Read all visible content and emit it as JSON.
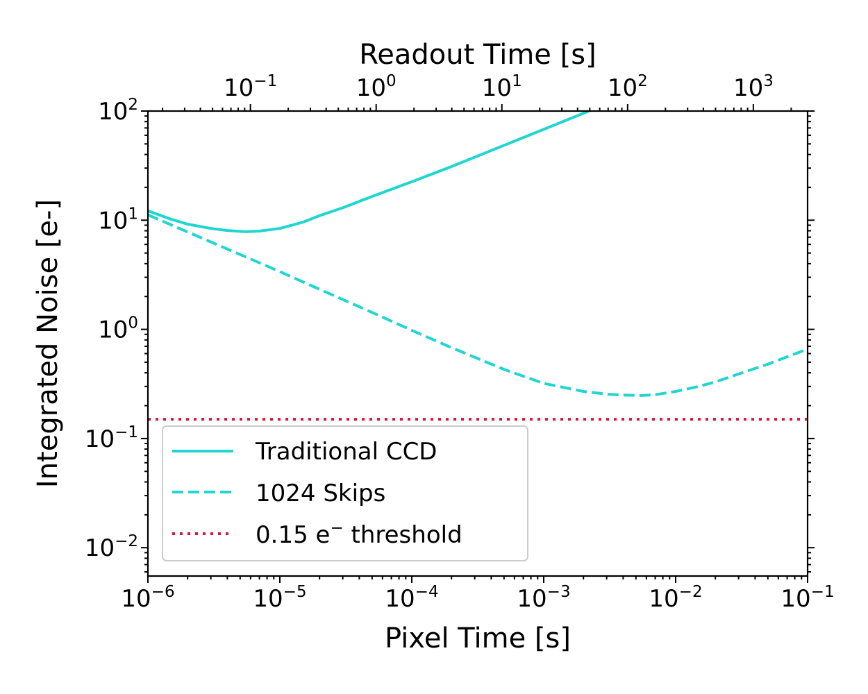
{
  "chart_data": {
    "type": "line",
    "title": "",
    "xlabel": "Pixel Time [s]",
    "ylabel": "Integrated Noise [e-]",
    "top_xlabel": "Readout Time [s]",
    "x_scale": "log",
    "y_scale": "log",
    "xlim": [
      1e-06,
      0.1
    ],
    "ylim": [
      0.0055,
      100
    ],
    "top_xlim": [
      0.0153,
      2700
    ],
    "x_ticks": [
      {
        "value": 1e-06,
        "base": "10",
        "exp": "−6"
      },
      {
        "value": 1e-05,
        "base": "10",
        "exp": "−5"
      },
      {
        "value": 0.0001,
        "base": "10",
        "exp": "−4"
      },
      {
        "value": 0.001,
        "base": "10",
        "exp": "−3"
      },
      {
        "value": 0.01,
        "base": "10",
        "exp": "−2"
      },
      {
        "value": 0.1,
        "base": "10",
        "exp": "−1"
      }
    ],
    "y_ticks": [
      {
        "value": 0.01,
        "base": "10",
        "exp": "−2"
      },
      {
        "value": 0.1,
        "base": "10",
        "exp": "−1"
      },
      {
        "value": 1,
        "base": "10",
        "exp": "0"
      },
      {
        "value": 10,
        "base": "10",
        "exp": "1"
      },
      {
        "value": 100,
        "base": "10",
        "exp": "2"
      }
    ],
    "top_x_ticks": [
      {
        "value": 0.1,
        "base": "10",
        "exp": "−1"
      },
      {
        "value": 1,
        "base": "10",
        "exp": "0"
      },
      {
        "value": 10,
        "base": "10",
        "exp": "1"
      },
      {
        "value": 100,
        "base": "10",
        "exp": "2"
      },
      {
        "value": 1000,
        "base": "10",
        "exp": "3"
      }
    ],
    "series": [
      {
        "name": "Traditional CCD",
        "style": "solid",
        "color": "#1fd6d0",
        "x": [
          1e-06,
          1.5e-06,
          2e-06,
          3e-06,
          4e-06,
          5e-06,
          5.5e-06,
          7e-06,
          1e-05,
          1.5e-05,
          2e-05,
          3e-05,
          5e-05,
          0.0001,
          0.0002,
          0.0005,
          0.001,
          0.0022
        ],
        "y": [
          12.2,
          10.2,
          9.2,
          8.4,
          8.05,
          7.9,
          7.85,
          7.95,
          8.4,
          9.6,
          11.0,
          13.0,
          16.5,
          22.5,
          31.0,
          48.5,
          68.0,
          100
        ]
      },
      {
        "name": "1024 Skips",
        "style": "dashed",
        "color": "#1fd6d0",
        "x": [
          1e-06,
          2e-06,
          5e-06,
          1e-05,
          2e-05,
          5e-05,
          0.0001,
          0.0002,
          0.0005,
          0.001,
          0.002,
          0.003,
          0.004,
          0.0055,
          0.007,
          0.01,
          0.015,
          0.02,
          0.03,
          0.05,
          0.1
        ],
        "y": [
          11.2,
          7.8,
          4.85,
          3.38,
          2.33,
          1.43,
          0.98,
          0.68,
          0.43,
          0.32,
          0.27,
          0.255,
          0.25,
          0.248,
          0.252,
          0.27,
          0.3,
          0.33,
          0.39,
          0.48,
          0.66
        ]
      },
      {
        "name": "0.15 e⁻ threshold",
        "style": "dotted",
        "color": "#dc143c",
        "x": [
          1e-06,
          0.1
        ],
        "y": [
          0.15,
          0.15
        ]
      }
    ],
    "legend": {
      "placement": "lower-left",
      "entries": [
        {
          "label": "Traditional CCD"
        },
        {
          "label": "1024 Skips"
        },
        {
          "label_main": "0.15 e",
          "label_sup": "−",
          "label_tail": " threshold"
        }
      ]
    },
    "grid": false
  }
}
